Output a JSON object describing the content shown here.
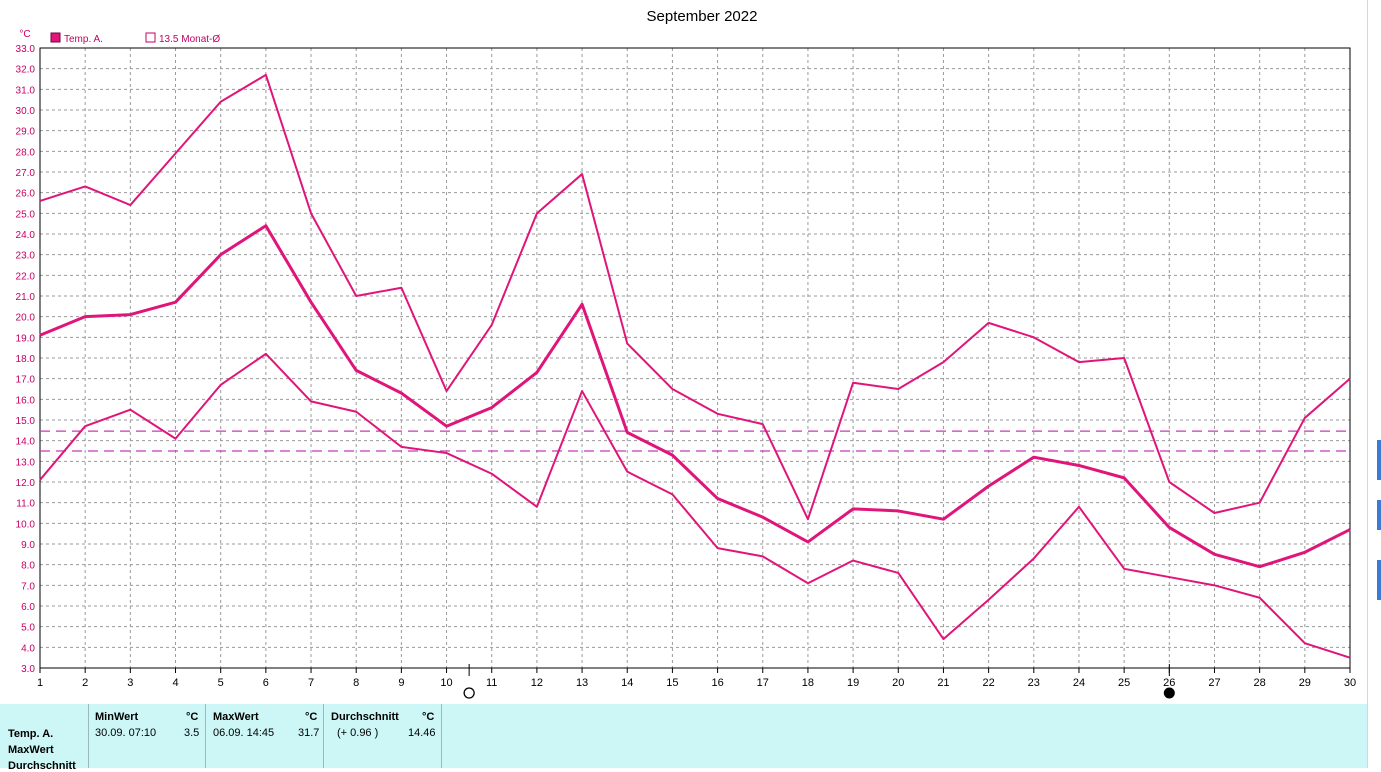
{
  "chart_data": {
    "type": "line",
    "title": "September 2022",
    "ylabel": "°C",
    "xlabel": "",
    "ylim": [
      3.0,
      33.0
    ],
    "x": [
      1,
      2,
      3,
      4,
      5,
      6,
      7,
      8,
      9,
      10,
      11,
      12,
      13,
      14,
      15,
      16,
      17,
      18,
      19,
      20,
      21,
      22,
      23,
      24,
      25,
      26,
      27,
      28,
      29,
      30
    ],
    "x_tick_labels": [
      "1",
      "2",
      "3",
      "4",
      "5",
      "6",
      "7",
      "8",
      "9",
      "10",
      "11",
      "12",
      "13",
      "14",
      "15",
      "16",
      "17",
      "18",
      "19",
      "20",
      "21",
      "22",
      "23",
      "24",
      "25",
      "26",
      "27",
      "28",
      "29",
      "30"
    ],
    "y_tick_labels": [
      "3.0",
      "4.0",
      "5.0",
      "6.0",
      "7.0",
      "8.0",
      "9.0",
      "10.0",
      "11.0",
      "12.0",
      "13.0",
      "14.0",
      "15.0",
      "16.0",
      "17.0",
      "18.0",
      "19.0",
      "20.0",
      "21.0",
      "22.0",
      "23.0",
      "24.0",
      "25.0",
      "26.0",
      "27.0",
      "28.0",
      "29.0",
      "30.0",
      "31.0",
      "32.0",
      "33.0"
    ],
    "grid": true,
    "legend": [
      "Temp. A.",
      "13.5 Monat-Ø"
    ],
    "legend_position": "top-left",
    "series": [
      {
        "name": "Temp. A.",
        "role": "max",
        "values": [
          25.6,
          26.3,
          25.4,
          27.9,
          30.4,
          31.7,
          25.0,
          21.0,
          21.4,
          16.4,
          19.6,
          25.0,
          26.9,
          18.7,
          16.5,
          15.3,
          14.8,
          10.2,
          16.8,
          16.5,
          17.8,
          19.7,
          19.0,
          17.8,
          18.0,
          12.0,
          10.5,
          11.0,
          15.1,
          17.0
        ]
      },
      {
        "name": "Temp. A.",
        "role": "mean",
        "values": [
          19.1,
          20.0,
          20.1,
          20.7,
          23.0,
          24.4,
          20.7,
          17.4,
          16.3,
          14.7,
          15.6,
          17.3,
          20.6,
          14.4,
          13.3,
          11.2,
          10.3,
          9.1,
          10.7,
          10.6,
          10.2,
          11.8,
          13.2,
          12.8,
          12.2,
          9.8,
          8.5,
          7.9,
          8.6,
          9.7
        ]
      },
      {
        "name": "Temp. A.",
        "role": "min",
        "values": [
          12.1,
          14.7,
          15.5,
          14.1,
          16.7,
          18.2,
          15.9,
          15.4,
          13.7,
          13.4,
          12.4,
          10.8,
          16.4,
          12.5,
          11.4,
          8.8,
          8.4,
          7.1,
          8.2,
          7.6,
          4.4,
          6.3,
          8.3,
          10.8,
          7.8,
          7.4,
          7.0,
          6.4,
          4.2,
          3.5
        ]
      }
    ],
    "reference_lines": [
      {
        "name": "13.5 Monat-Ø",
        "value": 13.5
      },
      {
        "name": "",
        "value": 14.46
      }
    ],
    "moon_markers": [
      {
        "x": 10.5,
        "phase": "full"
      },
      {
        "x": 26,
        "phase": "new"
      }
    ],
    "colors": {
      "series": "#e0157a",
      "refline": "#c639b9",
      "text": "#c40065",
      "grid": "#9a9a9a"
    }
  },
  "stats": {
    "row_labels": [
      "Temp. A.",
      "MaxWert",
      "Durchschnitt"
    ],
    "min": {
      "header": "MinWert",
      "unit": "°C",
      "when": "30.09.  07:10",
      "value": "3.5"
    },
    "max": {
      "header": "MaxWert",
      "unit": "°C",
      "when": "06.09.  14:45",
      "value": "31.7"
    },
    "avg": {
      "header": "Durchschnitt",
      "unit": "°C",
      "when": "(+ 0.96 )",
      "value": "14.46"
    }
  }
}
